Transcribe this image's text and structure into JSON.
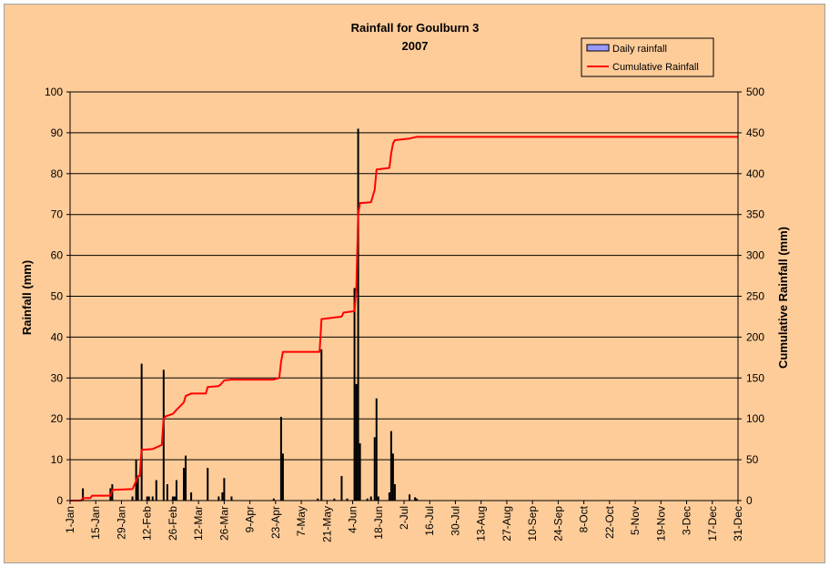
{
  "chart_data": {
    "type": "bar",
    "title": "Rainfall for Goulburn 3",
    "subtitle": "2007",
    "ylabel": "Rainfall (mm)",
    "y2label": "Cumulative Rainfall (mm)",
    "ylim": [
      0,
      100
    ],
    "y2lim": [
      0,
      500
    ],
    "yticks": [
      0,
      10,
      20,
      30,
      40,
      50,
      60,
      70,
      80,
      90,
      100
    ],
    "y2ticks": [
      0,
      50,
      100,
      150,
      200,
      250,
      300,
      350,
      400,
      450,
      500
    ],
    "xlim_day": [
      1,
      365
    ],
    "xtick_labels": [
      "1-Jan",
      "15-Jan",
      "29-Jan",
      "12-Feb",
      "26-Feb",
      "12-Mar",
      "26-Mar",
      "9-Apr",
      "23-Apr",
      "7-May",
      "21-May",
      "4-Jun",
      "18-Jun",
      "2-Jul",
      "16-Jul",
      "30-Jul",
      "13-Aug",
      "27-Aug",
      "10-Sep",
      "24-Sep",
      "8-Oct",
      "22-Oct",
      "5-Nov",
      "19-Nov",
      "3-Dec",
      "17-Dec",
      "31-Dec"
    ],
    "grid": true,
    "legend_position": "top-right",
    "colors": {
      "bar": "#000000",
      "line": "#ff0000",
      "background": "#fecc99",
      "legend_bar": "#9999ff"
    },
    "series": [
      {
        "name": "Daily rainfall",
        "type": "bar",
        "points": [
          {
            "date": "8-Jan",
            "value": 3
          },
          {
            "date": "23-Jan",
            "value": 3
          },
          {
            "date": "24-Jan",
            "value": 4
          },
          {
            "date": "4-Feb",
            "value": 1
          },
          {
            "date": "6-Feb",
            "value": 10
          },
          {
            "date": "7-Feb",
            "value": 6
          },
          {
            "date": "9-Feb",
            "value": 33.5
          },
          {
            "date": "12-Feb",
            "value": 1
          },
          {
            "date": "13-Feb",
            "value": 1
          },
          {
            "date": "15-Feb",
            "value": 1
          },
          {
            "date": "17-Feb",
            "value": 5
          },
          {
            "date": "21-Feb",
            "value": 32
          },
          {
            "date": "23-Feb",
            "value": 4
          },
          {
            "date": "26-Feb",
            "value": 1
          },
          {
            "date": "27-Feb",
            "value": 1
          },
          {
            "date": "28-Feb",
            "value": 5
          },
          {
            "date": "4-Mar",
            "value": 8
          },
          {
            "date": "5-Mar",
            "value": 11
          },
          {
            "date": "8-Mar",
            "value": 2
          },
          {
            "date": "17-Mar",
            "value": 8
          },
          {
            "date": "23-Mar",
            "value": 1
          },
          {
            "date": "25-Mar",
            "value": 2
          },
          {
            "date": "26-Mar",
            "value": 5.5
          },
          {
            "date": "30-Mar",
            "value": 1
          },
          {
            "date": "22-Apr",
            "value": 0.5
          },
          {
            "date": "26-Apr",
            "value": 20.5
          },
          {
            "date": "27-Apr",
            "value": 11.5
          },
          {
            "date": "16-May",
            "value": 0.5
          },
          {
            "date": "18-May",
            "value": 37
          },
          {
            "date": "25-May",
            "value": 0.5
          },
          {
            "date": "29-May",
            "value": 6
          },
          {
            "date": "1-Jun",
            "value": 0.5
          },
          {
            "date": "5-Jun",
            "value": 52
          },
          {
            "date": "6-Jun",
            "value": 28.5
          },
          {
            "date": "7-Jun",
            "value": 91
          },
          {
            "date": "8-Jun",
            "value": 14
          },
          {
            "date": "12-Jun",
            "value": 0.5
          },
          {
            "date": "14-Jun",
            "value": 1
          },
          {
            "date": "16-Jun",
            "value": 15.5
          },
          {
            "date": "17-Jun",
            "value": 25
          },
          {
            "date": "18-Jun",
            "value": 1
          },
          {
            "date": "24-Jun",
            "value": 2
          },
          {
            "date": "25-Jun",
            "value": 17
          },
          {
            "date": "26-Jun",
            "value": 11.5
          },
          {
            "date": "27-Jun",
            "value": 4
          },
          {
            "date": "5-Jul",
            "value": 1.5
          },
          {
            "date": "8-Jul",
            "value": 0.8
          },
          {
            "date": "9-Jul",
            "value": 0.5
          }
        ]
      },
      {
        "name": "Cumulative Rainfall",
        "type": "line",
        "points": [
          {
            "date": "1-Jan",
            "value": 0
          },
          {
            "date": "7-Jan",
            "value": 0
          },
          {
            "date": "8-Jan",
            "value": 3
          },
          {
            "date": "12-Jan",
            "value": 3
          },
          {
            "date": "13-Jan",
            "value": 6
          },
          {
            "date": "23-Jan",
            "value": 6
          },
          {
            "date": "24-Jan",
            "value": 13
          },
          {
            "date": "4-Feb",
            "value": 14
          },
          {
            "date": "6-Feb",
            "value": 24
          },
          {
            "date": "7-Feb",
            "value": 30
          },
          {
            "date": "8-Feb",
            "value": 30
          },
          {
            "date": "9-Feb",
            "value": 62
          },
          {
            "date": "15-Feb",
            "value": 63
          },
          {
            "date": "17-Feb",
            "value": 65
          },
          {
            "date": "20-Feb",
            "value": 68
          },
          {
            "date": "21-Feb",
            "value": 100
          },
          {
            "date": "22-Feb",
            "value": 103
          },
          {
            "date": "26-Feb",
            "value": 106
          },
          {
            "date": "28-Feb",
            "value": 111
          },
          {
            "date": "4-Mar",
            "value": 120
          },
          {
            "date": "5-Mar",
            "value": 128
          },
          {
            "date": "8-Mar",
            "value": 131
          },
          {
            "date": "16-Mar",
            "value": 131
          },
          {
            "date": "17-Mar",
            "value": 139
          },
          {
            "date": "23-Mar",
            "value": 140
          },
          {
            "date": "24-Mar",
            "value": 142
          },
          {
            "date": "26-Mar",
            "value": 147
          },
          {
            "date": "30-Mar",
            "value": 148
          },
          {
            "date": "22-Apr",
            "value": 148
          },
          {
            "date": "25-Apr",
            "value": 150
          },
          {
            "date": "26-Apr",
            "value": 170
          },
          {
            "date": "27-Apr",
            "value": 182
          },
          {
            "date": "17-May",
            "value": 182
          },
          {
            "date": "18-May",
            "value": 222
          },
          {
            "date": "29-May",
            "value": 225
          },
          {
            "date": "30-May",
            "value": 230
          },
          {
            "date": "5-Jun",
            "value": 232
          },
          {
            "date": "6-Jun",
            "value": 260
          },
          {
            "date": "7-Jun",
            "value": 350
          },
          {
            "date": "8-Jun",
            "value": 364
          },
          {
            "date": "14-Jun",
            "value": 365
          },
          {
            "date": "16-Jun",
            "value": 380
          },
          {
            "date": "17-Jun",
            "value": 405
          },
          {
            "date": "24-Jun",
            "value": 407
          },
          {
            "date": "25-Jun",
            "value": 425
          },
          {
            "date": "26-Jun",
            "value": 437
          },
          {
            "date": "27-Jun",
            "value": 441
          },
          {
            "date": "5-Jul",
            "value": 443
          },
          {
            "date": "9-Jul",
            "value": 445
          },
          {
            "date": "31-Dec",
            "value": 445
          }
        ]
      }
    ]
  }
}
